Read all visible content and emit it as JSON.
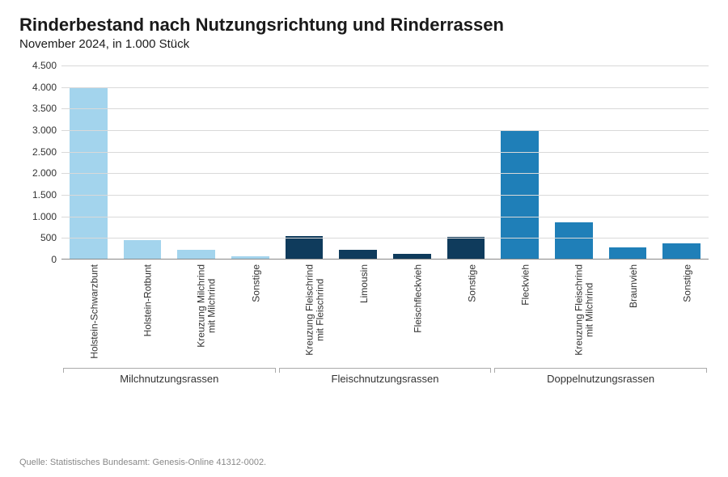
{
  "title": "Rinderbestand nach Nutzungsrichtung und Rinderrassen",
  "subtitle": "November 2024, in 1.000 Stück",
  "source": "Quelle: Statistisches Bundesamt: Genesis-Online 41312-0002.",
  "chart": {
    "type": "bar",
    "ylim": [
      0,
      4500
    ],
    "ytick_step": 500,
    "yticks": [
      "0",
      "500",
      "1.000",
      "1.500",
      "2.000",
      "2.500",
      "3.000",
      "3.500",
      "4.000",
      "4.500"
    ],
    "background_color": "#ffffff",
    "grid_color": "#d9d9d9",
    "axis_color": "#888888",
    "label_fontsize": 12,
    "title_fontsize": 22,
    "subtitle_fontsize": 15,
    "bar_width": 0.7,
    "groups": [
      {
        "label": "Milchnutzungsrassen",
        "color": "#a3d4ed",
        "count": 4
      },
      {
        "label": "Fleischnutzungsrassen",
        "color": "#0f3b5c",
        "count": 4
      },
      {
        "label": "Doppelnutzungsrassen",
        "color": "#1f7fb8",
        "count": 4
      }
    ],
    "bars": [
      {
        "label": "Holstein-Schwarzbunt",
        "value": 3950,
        "color": "#a3d4ed"
      },
      {
        "label": "Holstein-Rotbunt",
        "value": 430,
        "color": "#a3d4ed"
      },
      {
        "label": "Kreuzung Milchrind mit Milchrind",
        "value": 200,
        "color": "#a3d4ed",
        "multiline": [
          "Kreuzung Milchrind",
          "mit Milchrind"
        ]
      },
      {
        "label": "Sonstige",
        "value": 60,
        "color": "#a3d4ed"
      },
      {
        "label": "Kreuzung Fleischrind mit Fleischrind",
        "value": 530,
        "color": "#0f3b5c",
        "multiline": [
          "Kreuzung Fleischrind",
          "mit Fleischrind"
        ]
      },
      {
        "label": "Limousin",
        "value": 200,
        "color": "#0f3b5c"
      },
      {
        "label": "Fleischfleckvieh",
        "value": 110,
        "color": "#0f3b5c"
      },
      {
        "label": "Sonstige",
        "value": 500,
        "color": "#0f3b5c"
      },
      {
        "label": "Fleckvieh",
        "value": 2980,
        "color": "#1f7fb8"
      },
      {
        "label": "Kreuzung Fleischrind mit Milchrind",
        "value": 850,
        "color": "#1f7fb8",
        "multiline": [
          "Kreuzung Fleischrind",
          "mit Milchrind"
        ]
      },
      {
        "label": "Braunvieh",
        "value": 270,
        "color": "#1f7fb8"
      },
      {
        "label": "Sonstige",
        "value": 350,
        "color": "#1f7fb8"
      }
    ]
  }
}
